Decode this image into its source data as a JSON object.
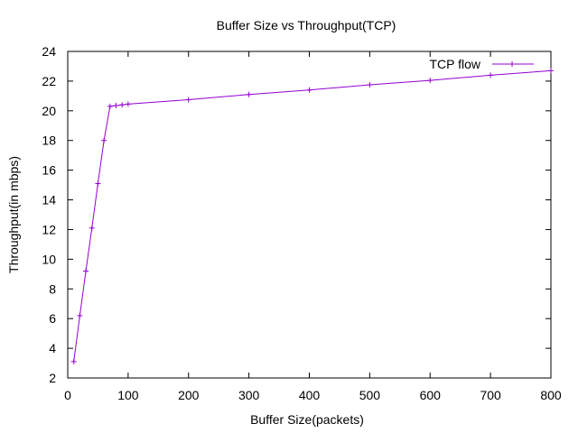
{
  "chart_data": {
    "type": "line",
    "title": "Buffer Size vs Throughput(TCP)",
    "xlabel": "Buffer Size(packets)",
    "ylabel": "Throughput(in mbps)",
    "xlim": [
      0,
      800
    ],
    "ylim": [
      2,
      24
    ],
    "xticks": [
      0,
      100,
      200,
      300,
      400,
      500,
      600,
      700,
      800
    ],
    "yticks": [
      2,
      4,
      6,
      8,
      10,
      12,
      14,
      16,
      18,
      20,
      22,
      24
    ],
    "grid": false,
    "legend_position": "top-right",
    "series": [
      {
        "name": "TCP flow",
        "color": "#9400d3",
        "marker": "plus",
        "x": [
          10,
          20,
          30,
          40,
          50,
          60,
          70,
          80,
          90,
          100,
          200,
          300,
          400,
          500,
          600,
          700,
          800
        ],
        "y": [
          3.1,
          6.2,
          9.2,
          12.1,
          15.1,
          18.0,
          20.3,
          20.35,
          20.4,
          20.45,
          20.75,
          21.1,
          21.4,
          21.75,
          22.05,
          22.4,
          22.7
        ]
      }
    ]
  }
}
